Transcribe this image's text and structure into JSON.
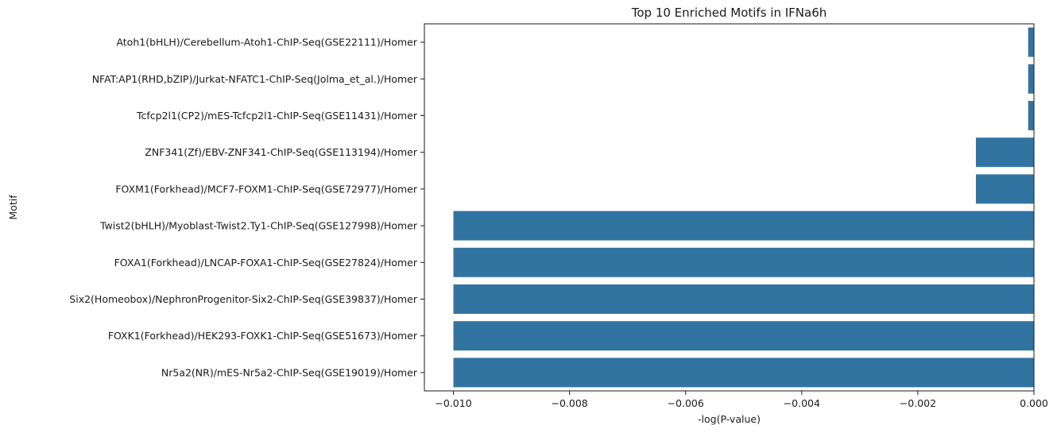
{
  "chart_data": {
    "type": "bar",
    "orientation": "horizontal",
    "title": "Top 10 Enriched Motifs in IFNa6h",
    "xlabel": "-log(P-value)",
    "ylabel": "Motif",
    "xlim": [
      -0.0105,
      0.0
    ],
    "xticks": [
      "-0.010",
      "-0.008",
      "-0.006",
      "-0.004",
      "-0.002",
      "0.000"
    ],
    "xtick_values": [
      -0.01,
      -0.008,
      -0.006,
      -0.004,
      -0.002,
      0.0
    ],
    "grid": false,
    "bar_color": "#3274a1",
    "categories": [
      "Atoh1(bHLH)/Cerebellum-Atoh1-ChIP-Seq(GSE22111)/Homer",
      "NFAT:AP1(RHD,bZIP)/Jurkat-NFATC1-ChIP-Seq(Jolma_et_al.)/Homer",
      "Tcfcp2l1(CP2)/mES-Tcfcp2l1-ChIP-Seq(GSE11431)/Homer",
      "ZNF341(Zf)/EBV-ZNF341-ChIP-Seq(GSE113194)/Homer",
      "FOXM1(Forkhead)/MCF7-FOXM1-ChIP-Seq(GSE72977)/Homer",
      "Twist2(bHLH)/Myoblast-Twist2.Ty1-ChIP-Seq(GSE127998)/Homer",
      "FOXA1(Forkhead)/LNCAP-FOXA1-ChIP-Seq(GSE27824)/Homer",
      "Six2(Homeobox)/NephronProgenitor-Six2-ChIP-Seq(GSE39837)/Homer",
      "FOXK1(Forkhead)/HEK293-FOXK1-ChIP-Seq(GSE51673)/Homer",
      "Nr5a2(NR)/mES-Nr5a2-ChIP-Seq(GSE19019)/Homer"
    ],
    "values": [
      -0.0001,
      -0.0001,
      -0.0001,
      -0.001,
      -0.001,
      -0.01,
      -0.01,
      -0.01,
      -0.01,
      -0.01
    ]
  }
}
